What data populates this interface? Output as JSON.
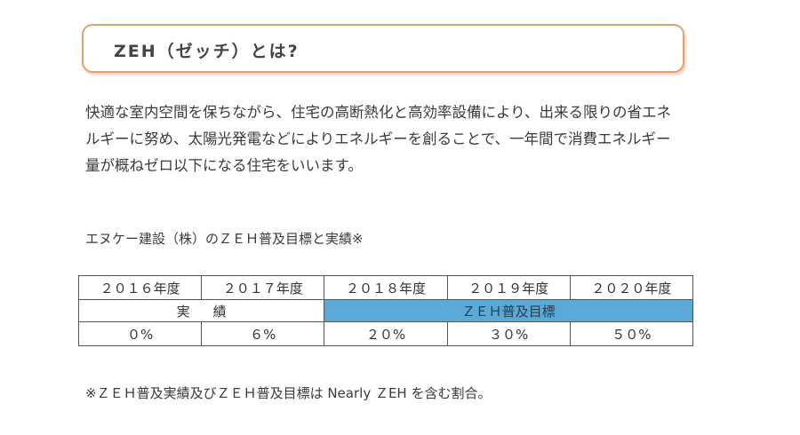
{
  "title": "ZEH（ゼッチ）とは?",
  "description": {
    "lines": [
      "快適な室内空間を保ちながら、住宅の高断熱化と高効率設備により、出来る限りの省エネ",
      "ルギーに努め、太陽光発電などによりエネルギーを創ることで、一年間で消費エネルギー",
      "量が概ねゼロ以下になる住宅をいいます。"
    ]
  },
  "table_caption": "エヌケー建設（株）のＺＥＨ普及目標と実績※",
  "table": {
    "years": [
      "２０１６年度",
      "２０１７年度",
      "２０１８年度",
      "２０１９年度",
      "２０２０年度"
    ],
    "actual_label": "実績",
    "target_label": "ＺＥＨ普及目標",
    "values": [
      "０%",
      "６%",
      "２０%",
      "３０%",
      "５０%"
    ],
    "target_color": "#5aa9d6"
  },
  "footnote": "※ＺＥＨ普及実績及びＺＥＨ普及目標は Nearly ＺEH を含む割合。",
  "colors": {
    "title_border": "#e8a06a",
    "text": "#3a3a3a"
  }
}
